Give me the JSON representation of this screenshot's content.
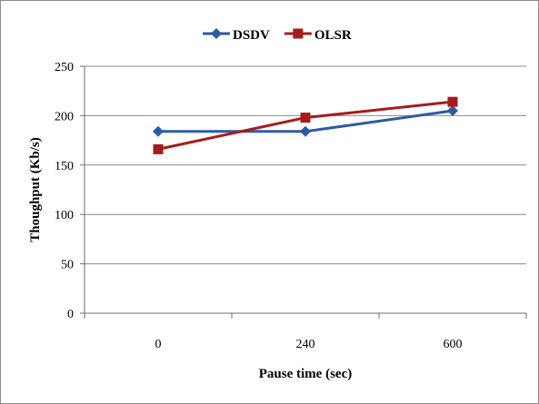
{
  "chart_data": {
    "type": "line",
    "title": "",
    "xlabel": "Pause time (sec)",
    "ylabel": "Thoughput (Kb/s)",
    "categories": [
      "0",
      "240",
      "600"
    ],
    "ylim": [
      0,
      250
    ],
    "yticks": [
      0,
      50,
      100,
      150,
      200,
      250
    ],
    "grid": "horizontal",
    "legend": "top-center",
    "series": [
      {
        "name": "DSDV",
        "values": [
          184,
          184,
          205
        ],
        "color": "#2b5ba7",
        "marker": "diamond"
      },
      {
        "name": "OLSR",
        "values": [
          166,
          198,
          214
        ],
        "color": "#a61c1c",
        "marker": "square"
      }
    ]
  }
}
